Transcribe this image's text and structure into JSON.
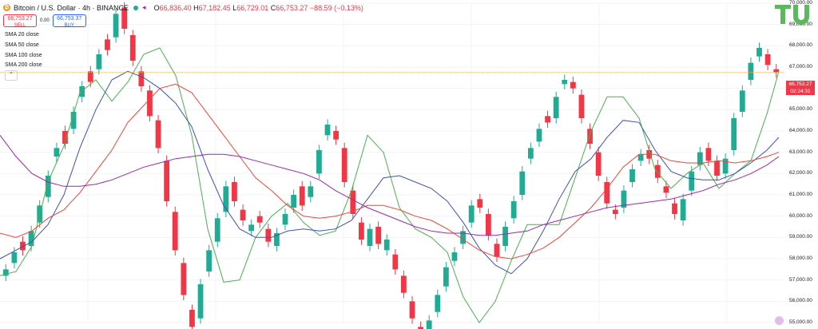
{
  "header": {
    "symbol_title": "Bitcoin / U.S. Dollar · 4h · BINANCE",
    "ohlc": {
      "open_label": "O",
      "open": "66,836.40",
      "high_label": "H",
      "high": "67,182.45",
      "low_label": "L",
      "low": "66,729.01",
      "close_label": "C",
      "close": "66,753.27",
      "change": "−88.59 (−0.13%)"
    }
  },
  "trade": {
    "sell_price": "66,753.27",
    "sell_label": "SELL",
    "spread": "0.00",
    "buy_price": "66,753.37",
    "buy_label": "BUY"
  },
  "indicators": [
    "SMA 20 close",
    "SMA 50 close",
    "SMA 100 close",
    "SMA 200 close"
  ],
  "price_axis": {
    "labels": [
      "70,000.00",
      "69,000.00",
      "68,000.00",
      "67,000.00",
      "66,000.00",
      "65,000.00",
      "64,000.00",
      "63,000.00",
      "62,000.00",
      "61,000.00",
      "60,000.00",
      "59,000.00",
      "58,000.00",
      "57,000.00",
      "56,000.00",
      "55,000.00"
    ],
    "last_price": "66,753.27",
    "countdown": "02:24:31"
  },
  "colors": {
    "up": "#22ab94",
    "down": "#f23645",
    "sma20": "#4caf50",
    "sma50": "#3f51b5",
    "sma100": "#f44336",
    "sma200": "#9c27b0",
    "brand": "#5cb85c"
  },
  "chart_data": {
    "type": "line",
    "x": [
      0,
      20,
      40,
      60,
      80,
      100,
      120,
      140,
      160,
      180,
      200,
      220,
      240,
      260,
      280,
      300,
      320,
      340,
      360,
      380,
      400,
      420,
      440,
      460,
      480,
      500,
      520,
      540,
      560,
      580,
      600,
      620,
      640,
      660,
      680,
      700,
      720,
      740,
      760,
      780,
      800,
      820,
      840,
      860,
      880,
      900,
      920,
      940,
      960,
      975
    ],
    "series": [
      {
        "name": "SMA 20 close",
        "values": [
          57200,
          57400,
          58600,
          61600,
          63300,
          65800,
          66400,
          65400,
          66300,
          67600,
          67900,
          66600,
          63800,
          59400,
          56900,
          57000,
          59000,
          60000,
          60600,
          59700,
          59100,
          59300,
          61200,
          63800,
          63000,
          60400,
          59400,
          59000,
          58300,
          56200,
          55000,
          56000,
          57900,
          59600,
          59600,
          59600,
          61800,
          64000,
          65600,
          65600,
          64600,
          62200,
          61300,
          62000,
          62500,
          61300,
          62000,
          62600,
          64800,
          66800
        ]
      },
      {
        "name": "SMA 50 close",
        "values": [
          58000,
          58400,
          58800,
          59600,
          61000,
          63200,
          65000,
          66400,
          66800,
          66500,
          66000,
          65300,
          64200,
          62200,
          60500,
          59400,
          59000,
          59000,
          59300,
          59400,
          59300,
          59400,
          59800,
          60800,
          61800,
          61900,
          61600,
          61300,
          60700,
          59700,
          58500,
          57700,
          57300,
          58000,
          59300,
          60800,
          62100,
          62700,
          63700,
          64500,
          64400,
          63100,
          62100,
          61800,
          61700,
          61700,
          62000,
          62500,
          63100,
          63700
        ]
      },
      {
        "name": "SMA 100 close",
        "values": [
          59200,
          59000,
          59300,
          59900,
          60300,
          61100,
          62100,
          63100,
          64400,
          65200,
          66000,
          66200,
          65800,
          64800,
          63800,
          62800,
          61800,
          61200,
          60500,
          60000,
          59900,
          60000,
          60200,
          60500,
          60500,
          60300,
          60000,
          59800,
          59400,
          58900,
          58400,
          58100,
          58000,
          58200,
          58500,
          59000,
          59700,
          60400,
          61300,
          62300,
          62900,
          62900,
          62600,
          62500,
          62500,
          62600,
          62500,
          62600,
          62800,
          63000
        ]
      },
      {
        "name": "SMA 200 close",
        "values": [
          63800,
          62800,
          62000,
          61600,
          61400,
          61400,
          61500,
          61700,
          62000,
          62300,
          62500,
          62700,
          62800,
          62900,
          62900,
          62800,
          62600,
          62400,
          62200,
          62000,
          61700,
          61200,
          60800,
          60400,
          60100,
          59800,
          59500,
          59300,
          59200,
          59200,
          59100,
          59100,
          59200,
          59300,
          59600,
          59800,
          60000,
          60200,
          60400,
          60500,
          60600,
          60700,
          60800,
          61000,
          61200,
          61500,
          61700,
          62000,
          62400,
          62800
        ]
      }
    ],
    "candles": [
      [
        57200,
        57500
      ],
      [
        57800,
        58300
      ],
      [
        58800,
        58400
      ],
      [
        58600,
        59300
      ],
      [
        59700,
        60500
      ],
      [
        60900,
        61900
      ],
      [
        62800,
        63200
      ],
      [
        64000,
        63400
      ],
      [
        64100,
        64900
      ],
      [
        65600,
        66100
      ],
      [
        66800,
        66300
      ],
      [
        66900,
        67600
      ],
      [
        68300,
        67800
      ],
      [
        68400,
        69500
      ],
      [
        69800,
        68800
      ],
      [
        68500,
        67300
      ],
      [
        66800,
        66100
      ],
      [
        65900,
        64700
      ],
      [
        64500,
        63200
      ],
      [
        62600,
        60700
      ],
      [
        60200,
        58400
      ],
      [
        57800,
        56300
      ],
      [
        55600,
        54800
      ],
      [
        55200,
        56800
      ],
      [
        57400,
        58400
      ],
      [
        58800,
        59900
      ],
      [
        60200,
        61400
      ],
      [
        61600,
        60700
      ],
      [
        60300,
        59800
      ],
      [
        59300,
        59600
      ],
      [
        60000,
        59700
      ],
      [
        59400,
        58800
      ],
      [
        58600,
        59200
      ],
      [
        59600,
        60100
      ],
      [
        60400,
        61000
      ],
      [
        61400,
        60500
      ],
      [
        60900,
        61400
      ],
      [
        62000,
        63100
      ],
      [
        63800,
        64300
      ],
      [
        64000,
        63600
      ],
      [
        63200,
        61600
      ],
      [
        61200,
        60100
      ],
      [
        59700,
        58900
      ],
      [
        58600,
        59400
      ],
      [
        59500,
        58700
      ],
      [
        58400,
        58900
      ],
      [
        58200,
        57500
      ],
      [
        57200,
        56400
      ],
      [
        56000,
        55200
      ],
      [
        54800,
        54300
      ],
      [
        54400,
        55100
      ],
      [
        55500,
        56300
      ],
      [
        56700,
        57600
      ],
      [
        57900,
        58300
      ],
      [
        58700,
        59300
      ],
      [
        59700,
        60500
      ],
      [
        60800,
        60400
      ],
      [
        60100,
        59100
      ],
      [
        58700,
        58100
      ],
      [
        58600,
        59500
      ],
      [
        59900,
        60700
      ],
      [
        61000,
        62100
      ],
      [
        62700,
        63200
      ],
      [
        63500,
        64100
      ],
      [
        64700,
        64400
      ],
      [
        64600,
        65600
      ],
      [
        66200,
        66400
      ],
      [
        66300,
        66000
      ],
      [
        65700,
        64600
      ],
      [
        64100,
        63400
      ],
      [
        63000,
        61900
      ],
      [
        61600,
        60600
      ],
      [
        60300,
        60100
      ],
      [
        60400,
        61200
      ],
      [
        61600,
        62200
      ],
      [
        62600,
        62900
      ],
      [
        63100,
        62700
      ],
      [
        62400,
        61800
      ],
      [
        61400,
        61100
      ],
      [
        60600,
        60100
      ],
      [
        59800,
        60800
      ],
      [
        61200,
        62100
      ],
      [
        62400,
        63000
      ],
      [
        63200,
        62600
      ],
      [
        62600,
        61900
      ],
      [
        62000,
        62700
      ],
      [
        63100,
        64600
      ],
      [
        64900,
        65900
      ],
      [
        66400,
        67200
      ],
      [
        67500,
        67900
      ],
      [
        67600,
        67100
      ],
      [
        66900,
        66753
      ]
    ],
    "ylim": [
      55000,
      70000
    ]
  }
}
